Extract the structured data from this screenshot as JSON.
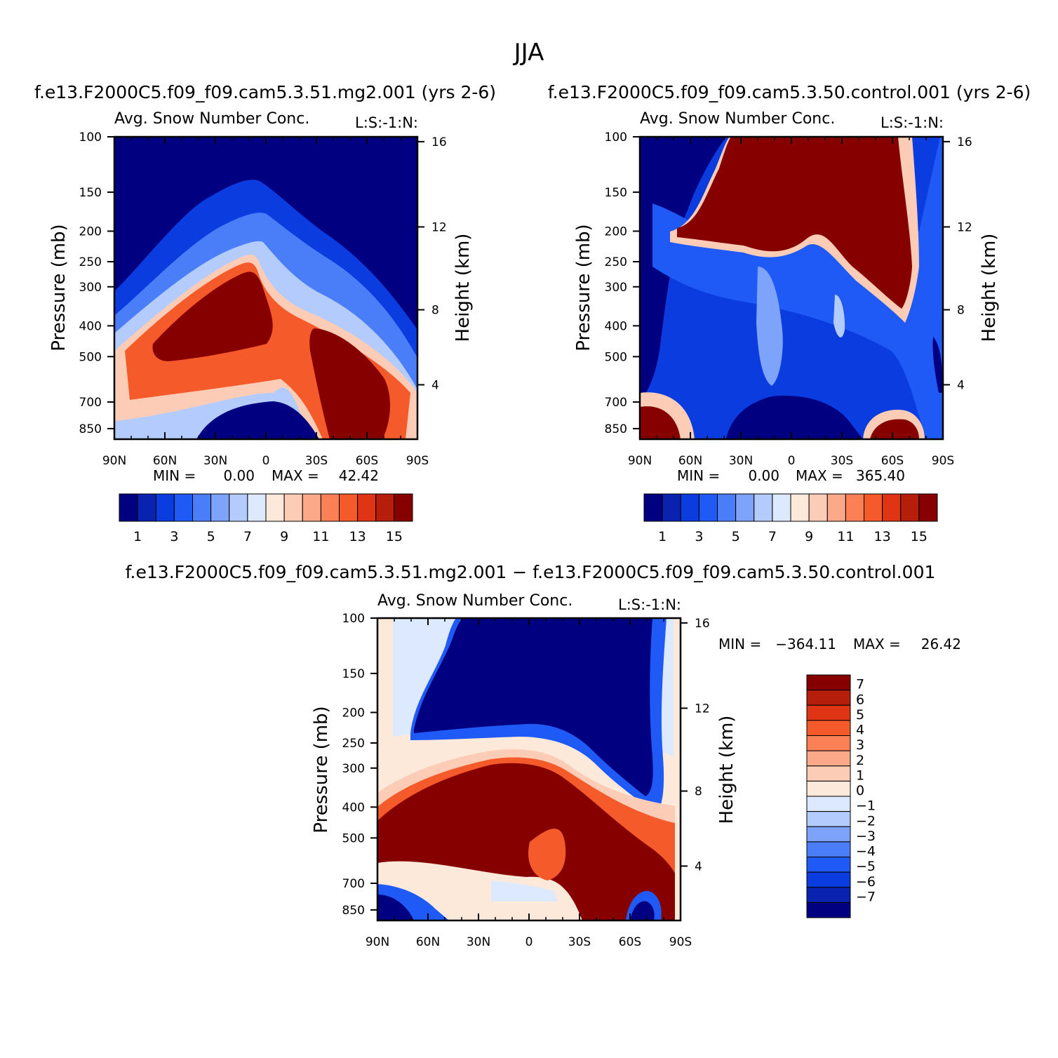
{
  "title": "JJA",
  "colors": {
    "ramp16": [
      "#000080",
      "#0a22b0",
      "#0b3ce0",
      "#1f5af6",
      "#4a7ef8",
      "#7ea3fb",
      "#b3ccfd",
      "#dde9fe",
      "#fde9d9",
      "#fcccb6",
      "#fca989",
      "#fb8055",
      "#f55a2a",
      "#df3514",
      "#b51e0b",
      "#870000"
    ],
    "diff14": [
      "#000080",
      "#0a22b0",
      "#0b3ce0",
      "#1f5af6",
      "#4a7ef8",
      "#7ea3fb",
      "#b3ccfd",
      "#dde9fe",
      "#fde9d9",
      "#fcccb6",
      "#fca989",
      "#fb8055",
      "#f55a2a",
      "#df3514",
      "#b51e0b",
      "#870000"
    ]
  },
  "chart_data": [
    {
      "type": "heatmap",
      "id": "panel1",
      "title": "f.e13.F2000C5.f09_f09.cam5.3.51.mg2.001 (yrs 2-6)",
      "subtitle": "Avg. Snow Number Conc.",
      "label_right": "L:S:-1:N:",
      "ylabel": "Pressure (mb)",
      "ylabel_right": "Height (km)",
      "x_ticks": [
        "90N",
        "60N",
        "30N",
        "0",
        "30S",
        "60S",
        "90S"
      ],
      "y_ticks": [
        "100",
        "150",
        "200",
        "250",
        "300",
        "400",
        "500",
        "700",
        "850"
      ],
      "y_right_ticks": [
        "16",
        "12",
        "8",
        "4"
      ],
      "min_label": "MIN =",
      "min_value": "0.00",
      "max_label": "MAX =",
      "max_value": "42.42",
      "colorbar_labels": [
        "1",
        "3",
        "5",
        "7",
        "9",
        "11",
        "13",
        "15"
      ]
    },
    {
      "type": "heatmap",
      "id": "panel2",
      "title": "f.e13.F2000C5.f09_f09.cam5.3.50.control.001 (yrs 2-6)",
      "subtitle": "Avg. Snow Number Conc.",
      "label_right": "L:S:-1:N:",
      "ylabel": "Pressure (mb)",
      "ylabel_right": "Height (km)",
      "x_ticks": [
        "90N",
        "60N",
        "30N",
        "0",
        "30S",
        "60S",
        "90S"
      ],
      "y_ticks": [
        "100",
        "150",
        "200",
        "250",
        "300",
        "400",
        "500",
        "700",
        "850"
      ],
      "y_right_ticks": [
        "16",
        "12",
        "8",
        "4"
      ],
      "min_label": "MIN =",
      "min_value": "0.00",
      "max_label": "MAX =",
      "max_value": "365.40",
      "colorbar_labels": [
        "1",
        "3",
        "5",
        "7",
        "9",
        "11",
        "13",
        "15"
      ]
    },
    {
      "type": "heatmap",
      "id": "panel3",
      "title": "f.e13.F2000C5.f09_f09.cam5.3.51.mg2.001 − f.e13.F2000C5.f09_f09.cam5.3.50.control.001",
      "subtitle": "Avg. Snow Number Conc.",
      "label_right": "L:S:-1:N:",
      "ylabel": "Pressure (mb)",
      "ylabel_right": "Height (km)",
      "x_ticks": [
        "90N",
        "60N",
        "30N",
        "0",
        "30S",
        "60S",
        "90S"
      ],
      "y_ticks": [
        "100",
        "150",
        "200",
        "250",
        "300",
        "400",
        "500",
        "700",
        "850"
      ],
      "y_right_ticks": [
        "16",
        "12",
        "8",
        "4"
      ],
      "min_label": "MIN =",
      "min_value": "−364.11",
      "max_label": "MAX =",
      "max_value": "26.42",
      "colorbar_labels": [
        "7",
        "6",
        "5",
        "4",
        "3",
        "2",
        "1",
        "0",
        "−1",
        "−2",
        "−3",
        "−4",
        "−5",
        "−6",
        "−7"
      ]
    }
  ]
}
